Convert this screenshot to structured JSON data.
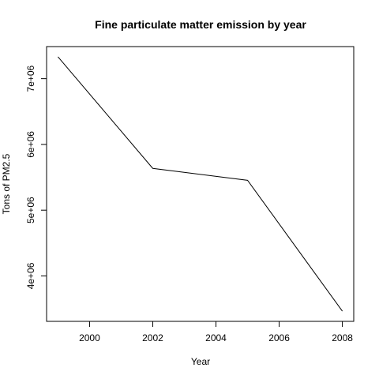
{
  "chart_data": {
    "type": "line",
    "title": "Fine particulate matter emission by year",
    "xlabel": "Year",
    "ylabel": "Tons of PM2.5",
    "x": [
      1999,
      2002,
      2005,
      2008
    ],
    "series": [
      {
        "values": [
          7332967,
          5635780,
          5454703,
          3464206
        ]
      }
    ],
    "xlim": [
      1998.64,
      2008.36
    ],
    "ylim": [
      3309000,
      7488000
    ],
    "xticks": [
      2000,
      2002,
      2004,
      2006,
      2008
    ],
    "xtick_labels": [
      "2000",
      "2002",
      "2004",
      "2006",
      "2008"
    ],
    "yticks": [
      4000000,
      5000000,
      6000000,
      7000000
    ],
    "ytick_labels": [
      "4e+06",
      "5e+06",
      "6e+06",
      "7e+06"
    ],
    "grid": false,
    "line_color": "#000000"
  }
}
